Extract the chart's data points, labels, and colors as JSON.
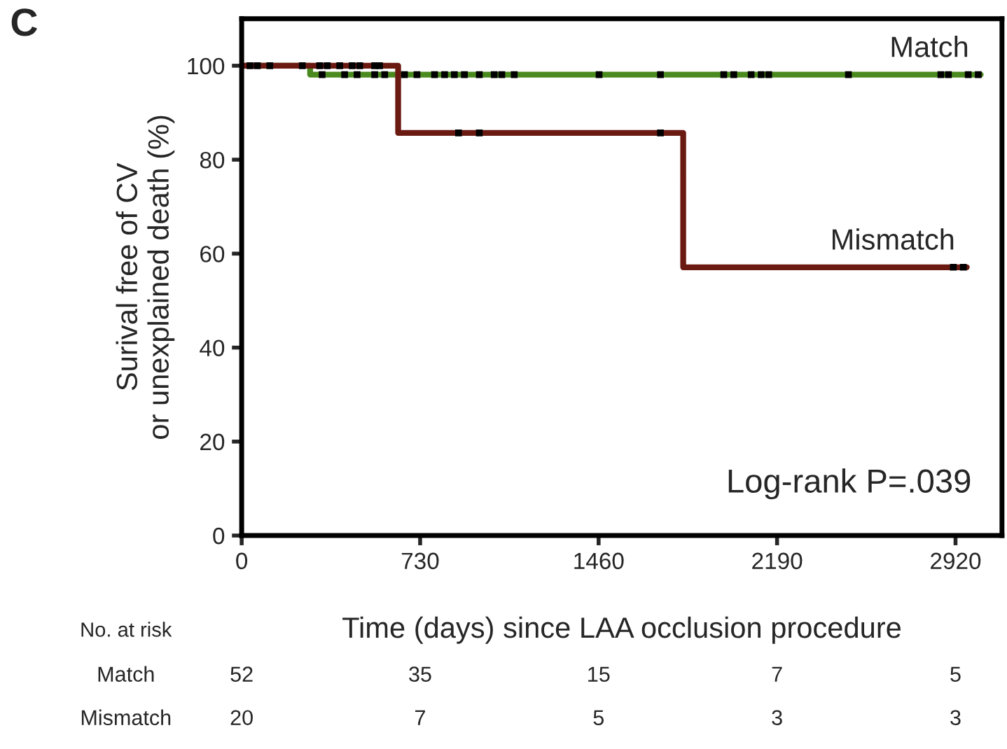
{
  "chart_data": {
    "type": "step",
    "title": "C",
    "xlabel": "Time (days) since LAA occlusion procedure",
    "ylabel": "Surival free of CV\nor unexplained death (%)",
    "xlim": [
      0,
      3110
    ],
    "xticks": [
      0,
      730,
      1460,
      2190,
      2920
    ],
    "ylim": [
      0,
      110
    ],
    "yticks": [
      0,
      20,
      40,
      60,
      80,
      100
    ],
    "grid": false,
    "legend": false,
    "line_style": "solid",
    "series": [
      {
        "name": "Match",
        "color": "#4a8a1e",
        "x": [
          0,
          280,
          3023
        ],
        "values": [
          100,
          98.1,
          98.1
        ]
      },
      {
        "name": "Mismatch",
        "color": "#6b1a12",
        "x": [
          0,
          640,
          1806,
          2966
        ],
        "values": [
          100,
          85.7,
          57.1,
          57.1
        ]
      },
      {
        "type": "scatter",
        "marker": "square",
        "color": "#000000",
        "x": [
          34,
          64,
          115,
          248
        ],
        "values": [
          100,
          100,
          100,
          100
        ]
      },
      {
        "type": "scatter",
        "marker": "square",
        "color": "#000000",
        "x": [
          329,
          421,
          472,
          544,
          585,
          666,
          717,
          789,
          830,
          870,
          911,
          972,
          1033,
          1064,
          1115,
          1462,
          1713,
          1972,
          2013,
          2084,
          2125,
          2156,
          2482,
          2860,
          2891,
          2972,
          3013
        ],
        "values": [
          98.1,
          98.1,
          98.1,
          98.1,
          98.1,
          98.1,
          98.1,
          98.1,
          98.1,
          98.1,
          98.1,
          98.1,
          98.1,
          98.1,
          98.1,
          98.1,
          98.1,
          98.1,
          98.1,
          98.1,
          98.1,
          98.1,
          98.1,
          98.1,
          98.1,
          98.1,
          98.1
        ]
      },
      {
        "type": "scatter",
        "marker": "square",
        "color": "#000000",
        "x": [
          319,
          350,
          401,
          452,
          483,
          544,
          564,
          887,
          972,
          1713,
          2911,
          2952
        ],
        "values": [
          100,
          100,
          100,
          100,
          100,
          100,
          100,
          85.7,
          85.7,
          85.7,
          57.1,
          57.1
        ]
      }
    ],
    "annotations": [
      "Log-rank P=.039",
      "No. at risk",
      "Match",
      "52",
      "35",
      "15",
      "7",
      "5",
      "Mismatch",
      "20",
      "7",
      "5",
      "3",
      "3"
    ]
  }
}
